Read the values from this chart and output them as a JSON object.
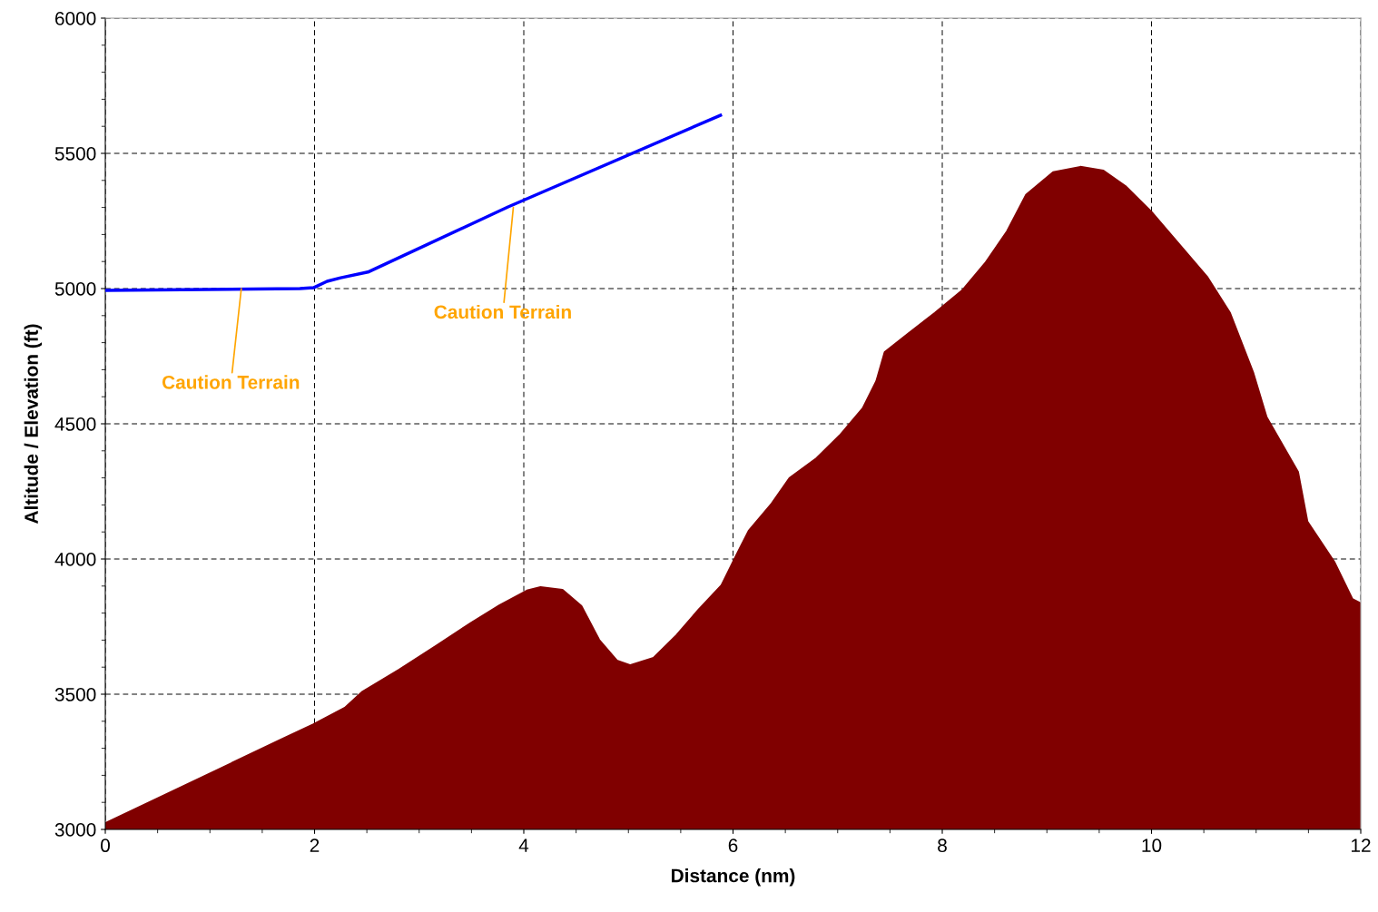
{
  "chart_data": {
    "type": "area",
    "xlabel": "Distance (nm)",
    "ylabel": "Altitude / Elevation (ft)",
    "xlim": [
      0,
      12
    ],
    "ylim": [
      3000,
      6000
    ],
    "xticks": [
      0,
      2,
      4,
      6,
      8,
      10,
      12
    ],
    "yticks": [
      3000,
      3500,
      4000,
      4500,
      5000,
      5500,
      6000
    ],
    "grid": true,
    "legend": false,
    "series": [
      {
        "color": "#800000",
        "x": [
          0,
          1.68,
          1.99,
          2.29,
          2.46,
          2.81,
          3.16,
          3.5,
          3.77,
          4.03,
          4.16,
          4.37,
          4.55,
          4.72,
          4.89,
          5.02,
          5.24,
          5.46,
          5.67,
          5.89,
          6.04,
          6.15,
          6.37,
          6.54,
          6.8,
          7.02,
          7.24,
          7.37,
          7.45,
          7.67,
          7.93,
          8.19,
          8.41,
          8.62,
          8.8,
          9.06,
          9.32,
          9.54,
          9.75,
          10.01,
          10.27,
          10.53,
          10.75,
          10.97,
          11.1,
          11.4,
          11.49,
          11.75,
          11.92,
          12
        ],
        "values": [
          3023,
          3332,
          3389,
          3450,
          3510,
          3591,
          3678,
          3765,
          3829,
          3883,
          3896,
          3886,
          3826,
          3701,
          3624,
          3607,
          3634,
          3718,
          3812,
          3903,
          4020,
          4104,
          4205,
          4299,
          4373,
          4457,
          4557,
          4658,
          4765,
          4832,
          4910,
          4993,
          5094,
          5212,
          5346,
          5430,
          5450,
          5436,
          5379,
          5279,
          5161,
          5044,
          4910,
          4691,
          4524,
          4322,
          4138,
          3987,
          3852,
          3836
        ]
      },
      {
        "type": "line",
        "color": "#0000ff",
        "x": [
          0,
          1.86,
          1.99,
          2.12,
          2.25,
          2.51,
          3.85,
          5.88
        ],
        "values": [
          4993,
          5000,
          5003,
          5027,
          5040,
          5061,
          5302,
          5641
        ]
      }
    ],
    "annotations": [
      {
        "text": "Caution Terrain",
        "x": 1.3,
        "y": 5000
      },
      {
        "text": "Caution Terrain",
        "x": 3.9,
        "y": 5300
      }
    ]
  }
}
